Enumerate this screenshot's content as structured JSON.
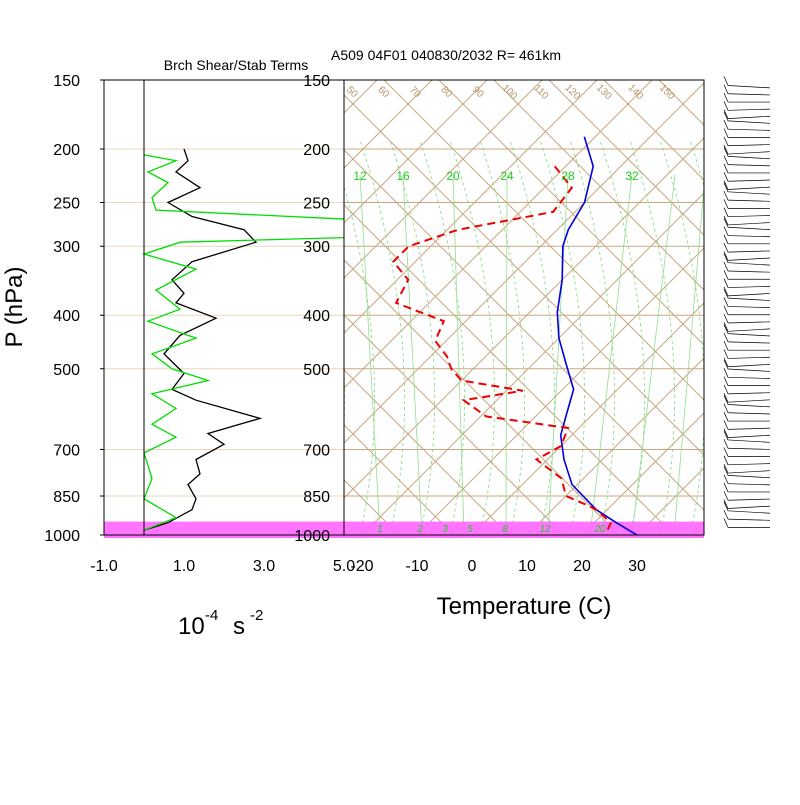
{
  "chart_data": [
    {
      "type": "line",
      "title": "Brch Shear/Stab Terms",
      "xlabel": "10",
      "xlabel_exp": "-4",
      "xlabel_unit": "s",
      "xlabel_unit_exp": "-2",
      "ylabel": "P (hPa)",
      "xlim": [
        -1.0,
        5.0
      ],
      "xticks": [
        "-1.0",
        "1.0",
        "3.0",
        "5.0"
      ],
      "xtick_values": [
        -1.0,
        1.0,
        3.0,
        5.0
      ],
      "y_scale": "log",
      "ylim": [
        1000,
        150
      ],
      "yticks": [
        150,
        200,
        250,
        300,
        400,
        500,
        700,
        850,
        1000
      ],
      "grid": false,
      "series": [
        {
          "color": "#000000",
          "points": [
            [
              1.0,
              200
            ],
            [
              1.1,
              210
            ],
            [
              0.8,
              220
            ],
            [
              1.4,
              235
            ],
            [
              0.6,
              250
            ],
            [
              1.2,
              265
            ],
            [
              2.5,
              280
            ],
            [
              2.8,
              295
            ],
            [
              1.2,
              320
            ],
            [
              0.7,
              345
            ],
            [
              1.0,
              365
            ],
            [
              0.8,
              380
            ],
            [
              1.8,
              405
            ],
            [
              0.9,
              435
            ],
            [
              0.5,
              470
            ],
            [
              1.0,
              510
            ],
            [
              0.7,
              545
            ],
            [
              1.3,
              570
            ],
            [
              2.9,
              615
            ],
            [
              1.6,
              655
            ],
            [
              2.0,
              685
            ],
            [
              1.3,
              730
            ],
            [
              1.4,
              775
            ],
            [
              1.1,
              810
            ],
            [
              1.3,
              860
            ],
            [
              1.2,
              900
            ],
            [
              0.6,
              950
            ],
            [
              0.0,
              980
            ]
          ]
        },
        {
          "color": "#00dd00",
          "points": [
            [
              0.0,
              205
            ],
            [
              0.8,
              210
            ],
            [
              0.1,
              220
            ],
            [
              0.6,
              230
            ],
            [
              0.2,
              245
            ],
            [
              0.3,
              258
            ],
            [
              6.0,
              270
            ],
            [
              6.0,
              288
            ],
            [
              0.9,
              295
            ],
            [
              0.0,
              310
            ],
            [
              1.3,
              330
            ],
            [
              0.3,
              360
            ],
            [
              0.9,
              390
            ],
            [
              0.1,
              410
            ],
            [
              1.3,
              440
            ],
            [
              0.2,
              470
            ],
            [
              0.7,
              500
            ],
            [
              1.6,
              525
            ],
            [
              0.2,
              555
            ],
            [
              0.8,
              590
            ],
            [
              0.2,
              630
            ],
            [
              0.8,
              665
            ],
            [
              0.0,
              710
            ],
            [
              0.2,
              790
            ],
            [
              0.0,
              860
            ],
            [
              0.8,
              930
            ],
            [
              0.0,
              980
            ]
          ]
        }
      ],
      "highlight_band_hpa": [
        930,
        1000
      ]
    },
    {
      "type": "line",
      "subtype": "skew-t",
      "title": "A509 04F01 040830/2032 R= 461km",
      "xlabel": "Temperature (C)",
      "xticks": [
        -20,
        -10,
        0,
        10,
        20,
        30
      ],
      "y_scale": "log",
      "ylim": [
        1000,
        150
      ],
      "yticks": [
        150,
        200,
        250,
        300,
        400,
        500,
        700,
        850,
        1000
      ],
      "mixing_ratio_labels": [
        12,
        16,
        20,
        24,
        28,
        32
      ],
      "mixing_ratio_bottom_labels": [
        "1",
        "2",
        "3",
        "5",
        "8",
        "12",
        "20"
      ],
      "dry_adiabat_labels": [
        "50",
        "60",
        "70",
        "80",
        "90",
        "100",
        "110",
        "120",
        "130",
        "140",
        "150"
      ],
      "series": [
        {
          "color": "#0000dd",
          "style": "solid",
          "points": [
            [
              -52,
              190
            ],
            [
              -45,
              215
            ],
            [
              -40,
              250
            ],
            [
              -38,
              280
            ],
            [
              -36,
              300
            ],
            [
              -30,
              345
            ],
            [
              -25,
              395
            ],
            [
              -20,
              440
            ],
            [
              -14,
              490
            ],
            [
              -8,
              545
            ],
            [
              -5,
              600
            ],
            [
              -2,
              660
            ],
            [
              3,
              730
            ],
            [
              9,
              810
            ],
            [
              18,
              900
            ],
            [
              24,
              950
            ],
            [
              30,
              1000
            ]
          ]
        },
        {
          "color": "#ee0000",
          "style": "dashed",
          "points": [
            [
              -52,
              215
            ],
            [
              -45,
              235
            ],
            [
              -44,
              260
            ],
            [
              -58,
              280
            ],
            [
              -64,
              300
            ],
            [
              -64,
              320
            ],
            [
              -58,
              345
            ],
            [
              -56,
              380
            ],
            [
              -44,
              410
            ],
            [
              -42,
              445
            ],
            [
              -37,
              475
            ],
            [
              -34,
              500
            ],
            [
              -30,
              525
            ],
            [
              -17,
              548
            ],
            [
              -26,
              570
            ],
            [
              -19,
              610
            ],
            [
              -2,
              640
            ],
            [
              0,
              690
            ],
            [
              -2,
              730
            ],
            [
              6,
              790
            ],
            [
              10,
              850
            ],
            [
              15,
              880
            ],
            [
              18,
              900
            ],
            [
              23,
              950
            ],
            [
              24,
              990
            ]
          ]
        }
      ]
    }
  ]
}
